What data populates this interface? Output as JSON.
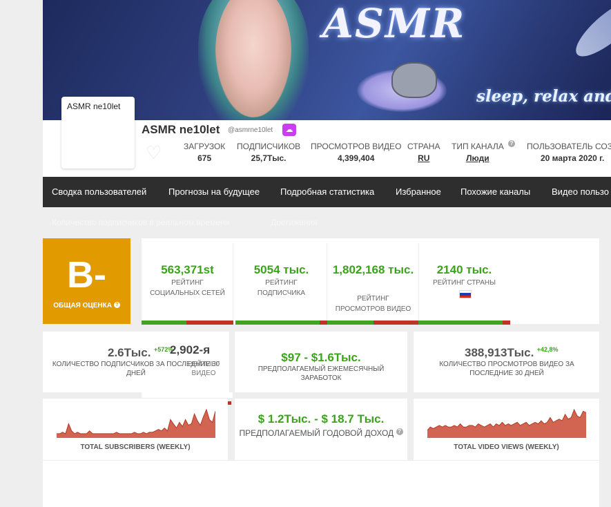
{
  "banner": {
    "title_art": "ASMR",
    "tagline_art": "sleep, relax and t"
  },
  "avatar": {
    "alt_text": "ASMR ne10let"
  },
  "channel": {
    "name": "ASMR ne10let",
    "handle": "@asmrne10let",
    "upload_icon": "cloud-upload-icon",
    "heart_icon": "heart-icon"
  },
  "stats": [
    {
      "label": "ЗАГРУЗОК",
      "value": "675"
    },
    {
      "label": "ПОДПИСЧИКОВ",
      "value": "25,7Тыс."
    },
    {
      "label": "ПРОСМОТРОВ ВИДЕО",
      "value": "4,399,404"
    },
    {
      "label": "СТРАНА",
      "value": "RU"
    },
    {
      "label": "ТИП КАНАЛА",
      "value": "Люди"
    },
    {
      "label": "ПОЛЬЗОВАТЕЛЬ СОЗД",
      "value": "20 марта 2020 г."
    }
  ],
  "nav": {
    "items": [
      "Сводка пользователей",
      "Прогнозы на будущее",
      "Подробная статистика",
      "Избранное",
      "Похожие каналы",
      "Видео пользо"
    ],
    "subitems": [
      "Количество подписчиков в реальном времени",
      "Достижения"
    ]
  },
  "grade": {
    "value": "B-",
    "label": "ОБЩАЯ ОЦЕНКА",
    "color": "#e19a00"
  },
  "ranks": [
    {
      "value": "563,371st",
      "label": "РЕЙТИНГ СОЦИАЛЬНЫХ СЕТЕЙ",
      "fill": 0.49
    },
    {
      "value": "5054 тыс.",
      "label": "РЕЙТИНГ ПОДПИСЧИКА",
      "fill": 0.92
    },
    {
      "value": "1,802,168 тыс.",
      "label": "РЕЙТИНГ ПРОСМОТРОВ ВИДЕО",
      "fill": 0.5
    },
    {
      "value": "2140 тыс.",
      "label": "РЕЙТИНГ СТРАНЫ",
      "fill": 0.92
    }
  ],
  "colors": {
    "rank_good": "#40a51c",
    "rank_bad": "#c0332b",
    "value_green": "#3aa31a"
  },
  "subs30": {
    "value": "2.6Тыс.",
    "delta": "+572%",
    "label": "КОЛИЧЕСТВО ПОДПИСЧИКОВ ЗА ПОСЛЕДНИЕ 30 ДНЕЙ",
    "overlay_value": "2,902-я",
    "overlay_label": "РЕЙТИНГ ВИДЕО"
  },
  "monthly": {
    "value": "$97 - $1.6Тыс.",
    "label": "ПРЕДПОЛАГАЕМЫЙ ЕЖЕМЕСЯЧНЫЙ ЗАРАБОТОК"
  },
  "views30": {
    "value": "388,913Тыс.",
    "delta": "+42,8%",
    "label": "КОЛИЧЕСТВО ПРОСМОТРОВ ВИДЕО ЗА ПОСЛЕДНИЕ 30 ДНЕЙ"
  },
  "yearly": {
    "value": "$ 1.2Тыс. - $ 18.7 Тыс.",
    "label": "ПРЕДПОЛАГАЕМЫЙ ГОДОВОЙ ДОХОД"
  },
  "chart_data": [
    {
      "type": "area",
      "title": "TOTAL SUBSCRIBERS (WEEKLY)",
      "color": "#c94a34",
      "values": [
        2,
        2,
        3,
        2,
        9,
        4,
        2,
        3,
        2,
        2,
        2,
        4,
        2,
        2,
        2,
        2,
        2,
        2,
        2,
        2,
        3,
        2,
        2,
        2,
        2,
        2,
        3,
        2,
        2,
        3,
        2,
        3,
        3,
        4,
        5,
        4,
        6,
        4,
        12,
        9,
        6,
        10,
        7,
        12,
        8,
        9,
        16,
        11,
        8,
        14,
        19,
        12,
        10,
        18
      ]
    },
    {
      "type": "area",
      "title": "TOTAL VIDEO VIEWS (WEEKLY)",
      "color": "#c94a34",
      "values": [
        4,
        6,
        5,
        6,
        7,
        6,
        7,
        6,
        6,
        7,
        6,
        8,
        6,
        6,
        7,
        7,
        6,
        8,
        7,
        6,
        7,
        8,
        6,
        8,
        7,
        9,
        7,
        8,
        7,
        8,
        9,
        7,
        8,
        9,
        7,
        8,
        9,
        8,
        10,
        8,
        9,
        12,
        9,
        10,
        11,
        10,
        14,
        11,
        12,
        17,
        13,
        12,
        16,
        15
      ]
    }
  ]
}
